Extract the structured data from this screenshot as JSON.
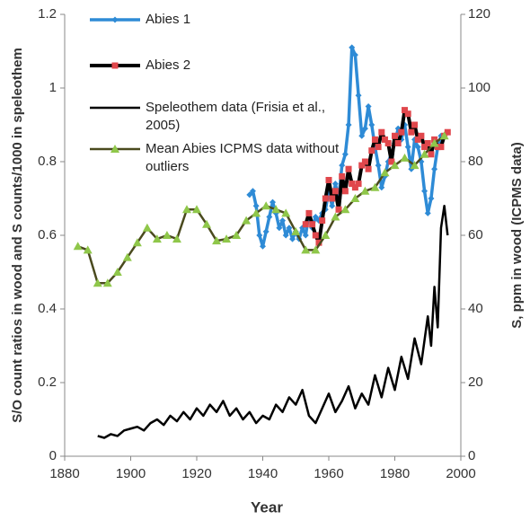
{
  "chart_data": {
    "type": "line",
    "xlabel": "Year",
    "ylabel": "S/O count ratios in wood and S counts/1000 in speleothem",
    "y2label": "S, ppm in wood  (ICPMS data)",
    "xlim": [
      1880,
      2000
    ],
    "xticks": [
      1880,
      1900,
      1920,
      1940,
      1960,
      1980,
      2000
    ],
    "ylim": [
      0,
      1.2
    ],
    "yticks": [
      0,
      0.2,
      0.4,
      0.6,
      0.8,
      1,
      1.2
    ],
    "y2lim": [
      0,
      120
    ],
    "y2ticks": [
      0,
      20,
      40,
      60,
      80,
      100,
      120
    ],
    "series": [
      {
        "name": "Abies 1",
        "color": "#2e8bd6",
        "marker": "diamond",
        "x": [
          1936,
          1937,
          1938,
          1939,
          1940,
          1941,
          1942,
          1943,
          1944,
          1945,
          1946,
          1947,
          1948,
          1949,
          1950,
          1951,
          1952,
          1953,
          1954,
          1955,
          1956,
          1957,
          1958,
          1959,
          1960,
          1961,
          1962,
          1963,
          1964,
          1965,
          1966,
          1967,
          1968,
          1969,
          1970,
          1971,
          1972,
          1973,
          1974,
          1975,
          1976,
          1977,
          1978,
          1979,
          1980,
          1981,
          1982,
          1983,
          1984,
          1985,
          1986,
          1987,
          1988,
          1989,
          1990,
          1991,
          1992,
          1993,
          1994
        ],
        "values": [
          0.71,
          0.72,
          0.68,
          0.6,
          0.57,
          0.61,
          0.65,
          0.69,
          0.66,
          0.62,
          0.64,
          0.6,
          0.62,
          0.59,
          0.61,
          0.59,
          0.62,
          0.6,
          0.66,
          0.62,
          0.65,
          0.64,
          0.66,
          0.67,
          0.72,
          0.68,
          0.74,
          0.7,
          0.79,
          0.82,
          0.9,
          1.11,
          1.09,
          0.98,
          0.87,
          0.89,
          0.95,
          0.9,
          0.84,
          0.79,
          0.73,
          0.76,
          0.8,
          0.82,
          0.85,
          0.89,
          0.86,
          0.9,
          0.84,
          0.78,
          0.86,
          0.84,
          0.8,
          0.72,
          0.66,
          0.7,
          0.78,
          0.84,
          0.87
        ]
      },
      {
        "name": "Abies 2",
        "color": "#000000",
        "marker_color": "#e0474c",
        "marker": "square",
        "x": [
          1953,
          1954,
          1955,
          1956,
          1957,
          1958,
          1959,
          1960,
          1961,
          1962,
          1963,
          1964,
          1965,
          1966,
          1967,
          1968,
          1969,
          1970,
          1971,
          1972,
          1973,
          1974,
          1975,
          1976,
          1977,
          1978,
          1979,
          1980,
          1981,
          1982,
          1983,
          1984,
          1985,
          1986,
          1987,
          1988,
          1989,
          1990,
          1991,
          1992,
          1993,
          1994,
          1995,
          1996
        ],
        "values": [
          0.63,
          0.66,
          0.63,
          0.6,
          0.58,
          0.64,
          0.7,
          0.75,
          0.7,
          0.72,
          0.67,
          0.76,
          0.72,
          0.78,
          0.74,
          0.73,
          0.74,
          0.79,
          0.8,
          0.78,
          0.83,
          0.86,
          0.84,
          0.88,
          0.86,
          0.85,
          0.8,
          0.87,
          0.85,
          0.88,
          0.94,
          0.93,
          0.88,
          0.9,
          0.86,
          0.87,
          0.84,
          0.85,
          0.82,
          0.86,
          0.84,
          0.84,
          0.87,
          0.88
        ]
      },
      {
        "name": "Speleothem data (Frisia et al., 2005)",
        "color": "#000000",
        "x": [
          1890,
          1892,
          1894,
          1896,
          1898,
          1900,
          1902,
          1904,
          1906,
          1908,
          1910,
          1912,
          1914,
          1916,
          1918,
          1920,
          1922,
          1924,
          1926,
          1928,
          1930,
          1932,
          1934,
          1936,
          1938,
          1940,
          1942,
          1944,
          1946,
          1948,
          1950,
          1952,
          1954,
          1956,
          1958,
          1960,
          1962,
          1964,
          1966,
          1968,
          1970,
          1972,
          1974,
          1976,
          1978,
          1980,
          1982,
          1984,
          1986,
          1988,
          1990,
          1991,
          1992,
          1993,
          1994,
          1995,
          1996
        ],
        "values": [
          0.055,
          0.05,
          0.06,
          0.055,
          0.07,
          0.075,
          0.08,
          0.07,
          0.09,
          0.1,
          0.085,
          0.11,
          0.095,
          0.12,
          0.1,
          0.13,
          0.11,
          0.14,
          0.12,
          0.15,
          0.11,
          0.13,
          0.1,
          0.12,
          0.09,
          0.11,
          0.1,
          0.14,
          0.12,
          0.16,
          0.14,
          0.18,
          0.11,
          0.09,
          0.13,
          0.17,
          0.12,
          0.15,
          0.19,
          0.13,
          0.17,
          0.14,
          0.22,
          0.16,
          0.24,
          0.18,
          0.27,
          0.21,
          0.32,
          0.25,
          0.38,
          0.3,
          0.46,
          0.35,
          0.62,
          0.68,
          0.6
        ]
      },
      {
        "name": "Mean Abies ICPMS data without outliers",
        "color": "#4a4a1e",
        "marker_color": "#8fc74a",
        "marker": "triangle",
        "axis": "y2",
        "x": [
          1884,
          1887,
          1890,
          1893,
          1896,
          1899,
          1902,
          1905,
          1908,
          1911,
          1914,
          1917,
          1920,
          1923,
          1926,
          1929,
          1932,
          1935,
          1938,
          1941,
          1944,
          1947,
          1950,
          1953,
          1956,
          1959,
          1962,
          1965,
          1968,
          1971,
          1974,
          1977,
          1980,
          1983,
          1986,
          1989,
          1992,
          1995
        ],
        "values": [
          57,
          56,
          47,
          47,
          50,
          54,
          58,
          62,
          59,
          60,
          59,
          67,
          67,
          63,
          58.5,
          59,
          60,
          64,
          66,
          68,
          67,
          66,
          61,
          56,
          56,
          60,
          65,
          67,
          70,
          72,
          73,
          77,
          79,
          81,
          79,
          82,
          85,
          87
        ]
      }
    ]
  }
}
